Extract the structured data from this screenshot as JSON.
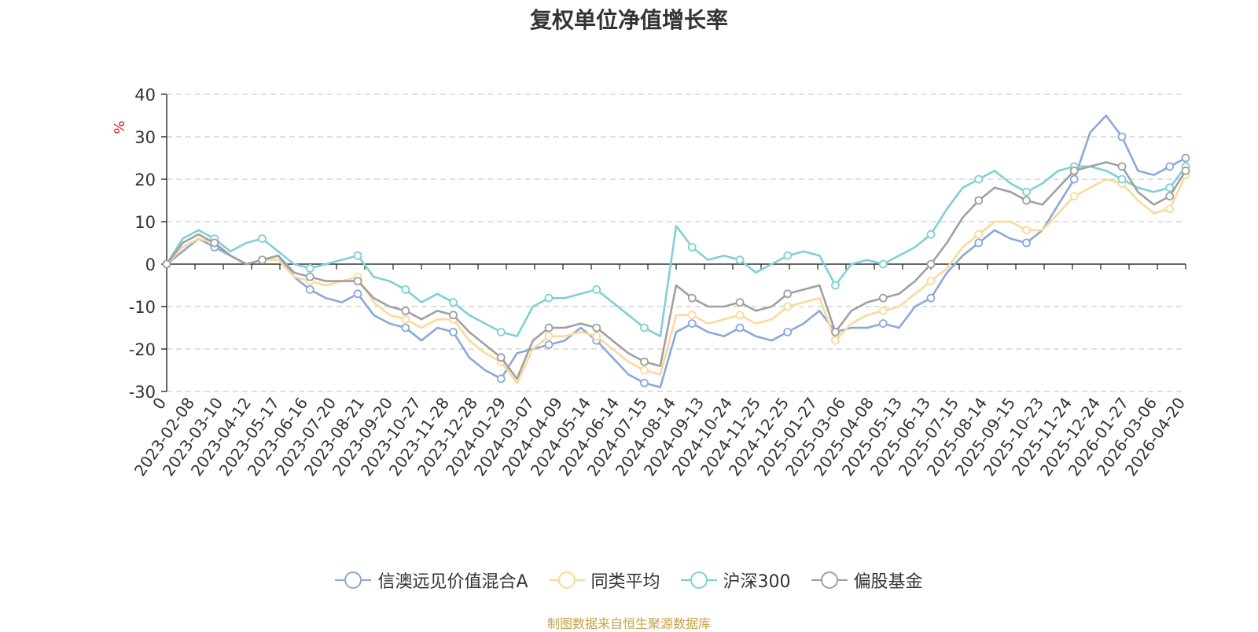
{
  "title": "复权单位净值增长率",
  "source": "制图数据来自恒生聚源数据库",
  "chart_data": {
    "type": "line",
    "ylabel": "%",
    "ylim": [
      -30,
      40
    ],
    "yticks": [
      40,
      30,
      20,
      10,
      0,
      -10,
      -20,
      -30
    ],
    "xticks": [
      "0",
      "2023-02-08",
      "2023-03-10",
      "2023-04-12",
      "2023-05-17",
      "2023-06-16",
      "2023-07-20",
      "2023-08-21",
      "2023-09-20",
      "2023-10-27",
      "2023-11-28",
      "2023-12-28",
      "2024-01-29",
      "2024-03-07",
      "2024-04-09",
      "2024-05-14",
      "2024-06-14",
      "2024-07-15",
      "2024-08-14",
      "2024-09-13",
      "2024-10-24",
      "2024-11-25",
      "2024-12-25",
      "2025-01-27",
      "2025-03-06",
      "2025-04-08",
      "2025-05-13",
      "2025-06-13",
      "2025-07-15",
      "2025-08-14",
      "2025-09-15",
      "2025-10-23",
      "2025-11-24",
      "2025-12-24",
      "2026-01-27",
      "2026-03-06",
      "2026-04-20"
    ],
    "grid": true,
    "legend_position": "bottom",
    "series": [
      {
        "name": "信澳远见价值混合A",
        "color": "#8aa8da",
        "values": [
          0,
          3,
          6,
          4,
          2,
          0,
          1,
          2,
          -3,
          -6,
          -8,
          -9,
          -7,
          -12,
          -14,
          -15,
          -18,
          -15,
          -16,
          -22,
          -25,
          -27,
          -21,
          -20,
          -19,
          -18,
          -15,
          -18,
          -22,
          -26,
          -28,
          -29,
          -16,
          -14,
          -16,
          -17,
          -15,
          -17,
          -18,
          -16,
          -14,
          -11,
          -16,
          -15,
          -15,
          -14,
          -15,
          -10,
          -8,
          -2,
          2,
          5,
          8,
          6,
          5,
          8,
          14,
          20,
          31,
          35,
          30,
          22,
          21,
          23,
          25
        ]
      },
      {
        "name": "同类平均",
        "color": "#fdd89a",
        "values": [
          0,
          4,
          6,
          5,
          2,
          0,
          1,
          1,
          -3,
          -4,
          -5,
          -4,
          -3,
          -9,
          -12,
          -13,
          -15,
          -13,
          -13,
          -18,
          -21,
          -23,
          -28,
          -20,
          -17,
          -17,
          -16,
          -17,
          -20,
          -23,
          -25,
          -26,
          -12,
          -12,
          -14,
          -13,
          -12,
          -14,
          -13,
          -10,
          -9,
          -8,
          -18,
          -14,
          -12,
          -11,
          -10,
          -7,
          -4,
          -1,
          4,
          7,
          10,
          10,
          8,
          8,
          12,
          16,
          18,
          20,
          19,
          15,
          12,
          13,
          21
        ]
      },
      {
        "name": "沪深300",
        "color": "#7fd0d6",
        "values": [
          0,
          6,
          8,
          6,
          3,
          5,
          6,
          3,
          0,
          -1,
          0,
          1,
          2,
          -3,
          -4,
          -6,
          -9,
          -7,
          -9,
          -12,
          -14,
          -16,
          -17,
          -10,
          -8,
          -8,
          -7,
          -6,
          -9,
          -12,
          -15,
          -17,
          9,
          4,
          1,
          2,
          1,
          -2,
          0,
          2,
          3,
          2,
          -5,
          0,
          1,
          0,
          2,
          4,
          7,
          13,
          18,
          20,
          22,
          19,
          17,
          19,
          22,
          23,
          23,
          22,
          20,
          18,
          17,
          18,
          23
        ]
      },
      {
        "name": "偏股基金",
        "color": "#a0a0a0",
        "values": [
          0,
          5,
          7,
          5,
          2,
          0,
          1,
          2,
          -2,
          -3,
          -4,
          -4,
          -4,
          -8,
          -10,
          -11,
          -13,
          -11,
          -12,
          -16,
          -19,
          -22,
          -27,
          -18,
          -15,
          -15,
          -14,
          -15,
          -18,
          -21,
          -23,
          -24,
          -5,
          -8,
          -10,
          -10,
          -9,
          -11,
          -10,
          -7,
          -6,
          -5,
          -16,
          -11,
          -9,
          -8,
          -7,
          -4,
          0,
          5,
          11,
          15,
          18,
          17,
          15,
          14,
          18,
          22,
          23,
          24,
          23,
          17,
          14,
          16,
          22
        ]
      }
    ]
  }
}
